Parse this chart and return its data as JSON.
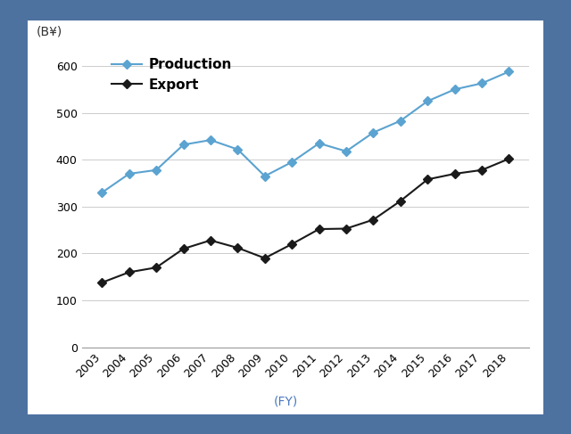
{
  "years": [
    2003,
    2004,
    2005,
    2006,
    2007,
    2008,
    2009,
    2010,
    2011,
    2012,
    2013,
    2014,
    2015,
    2016,
    2017,
    2018
  ],
  "production": [
    330,
    370,
    378,
    432,
    442,
    422,
    365,
    395,
    435,
    418,
    458,
    483,
    525,
    550,
    563,
    588
  ],
  "export": [
    138,
    160,
    170,
    210,
    228,
    212,
    190,
    220,
    252,
    253,
    272,
    312,
    358,
    370,
    378,
    402
  ],
  "production_color": "#5BA3D0",
  "export_color": "#1a1a1a",
  "marker": "D",
  "ylabel": "(B¥)",
  "xlabel": "(FY)",
  "ylim": [
    0,
    650
  ],
  "yticks": [
    0,
    100,
    200,
    300,
    400,
    500,
    600
  ],
  "bg_outer": "#4d72a0",
  "bg_inner": "#ffffff",
  "grid_color": "#cccccc",
  "legend_production": "Production",
  "legend_export": "Export",
  "label_fontsize": 10,
  "tick_fontsize": 9,
  "xlabel_color": "#4a7abf"
}
